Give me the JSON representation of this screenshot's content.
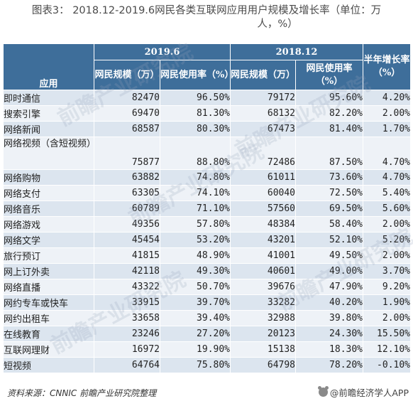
{
  "title": {
    "line1": "图表3： 2018.12-2019.6网民各类互联网应用用户规模及增长率（单位：万",
    "line2": "人，%）"
  },
  "table": {
    "app_header": "应用",
    "period_2019": "2019.6",
    "period_2018": "2018.12",
    "growth_header": "半年增长率（%）",
    "users_header": "网民规模（万）",
    "rate_header": "网民使用率（%）",
    "rows": [
      {
        "app": "即时通信",
        "u2019": "82470",
        "r2019": "96.50%",
        "u2018": "79172",
        "r2018": "95.60%",
        "growth": "4.20%"
      },
      {
        "app": "搜索引擎",
        "u2019": "69470",
        "r2019": "81.30%",
        "u2018": "68132",
        "r2018": "82.20%",
        "growth": "2.00%"
      },
      {
        "app": "网络新闻",
        "u2019": "68587",
        "r2019": "80.30%",
        "u2018": "67473",
        "r2018": "81.40%",
        "growth": "1.70%"
      },
      {
        "app": "网络视频（含短视频）",
        "u2019": "75877",
        "r2019": "88.80%",
        "u2018": "72486",
        "r2018": "87.50%",
        "growth": "4.70%"
      },
      {
        "app": "网络购物",
        "u2019": "63882",
        "r2019": "74.80%",
        "u2018": "61011",
        "r2018": "73.60%",
        "growth": "4.70%"
      },
      {
        "app": "网络支付",
        "u2019": "63305",
        "r2019": "74.10%",
        "u2018": "60040",
        "r2018": "72.50%",
        "growth": "5.40%"
      },
      {
        "app": "网络音乐",
        "u2019": "60789",
        "r2019": "71.10%",
        "u2018": "57560",
        "r2018": "69.50%",
        "growth": "5.60%"
      },
      {
        "app": "网络游戏",
        "u2019": "49356",
        "r2019": "57.80%",
        "u2018": "48384",
        "r2018": "58.40%",
        "growth": "2.00%"
      },
      {
        "app": "网络文学",
        "u2019": "45454",
        "r2019": "53.20%",
        "u2018": "43201",
        "r2018": "52.10%",
        "growth": "5.20%"
      },
      {
        "app": "旅行预订",
        "u2019": "41815",
        "r2019": "48.90%",
        "u2018": "41001",
        "r2018": "49.50%",
        "growth": "2.00%"
      },
      {
        "app": "网上订外卖",
        "u2019": "42118",
        "r2019": "49.30%",
        "u2018": "40601",
        "r2018": "49.00%",
        "growth": "3.70%"
      },
      {
        "app": "网络直播",
        "u2019": "43322",
        "r2019": "50.70%",
        "u2018": "39676",
        "r2018": "47.90%",
        "growth": "9.20%"
      },
      {
        "app": "网约专车或快车",
        "u2019": "33915",
        "r2019": "39.70%",
        "u2018": "33282",
        "r2018": "40.20%",
        "growth": "1.90%"
      },
      {
        "app": "网约出租车",
        "u2019": "33658",
        "r2019": "39.40%",
        "u2018": "32988",
        "r2018": "39.80%",
        "growth": "2.00%"
      },
      {
        "app": "在线教育",
        "u2019": "23246",
        "r2019": "27.20%",
        "u2018": "20123",
        "r2018": "24.30%",
        "growth": "15.50%"
      },
      {
        "app": "互联网理财",
        "u2019": "16972",
        "r2019": "19.90%",
        "u2018": "15138",
        "r2018": "18.30%",
        "growth": "12.10%"
      },
      {
        "app": "短视频",
        "u2019": "64764",
        "r2019": "75.80%",
        "u2018": "64798",
        "r2018": "78.20%",
        "growth": "-0.10%"
      }
    ]
  },
  "footer": {
    "source": "资料来源：CNNIC 前瞻产业研究院整理",
    "brand": "@前瞻经济学人APP"
  },
  "watermark": "前瞻产业研究院"
}
